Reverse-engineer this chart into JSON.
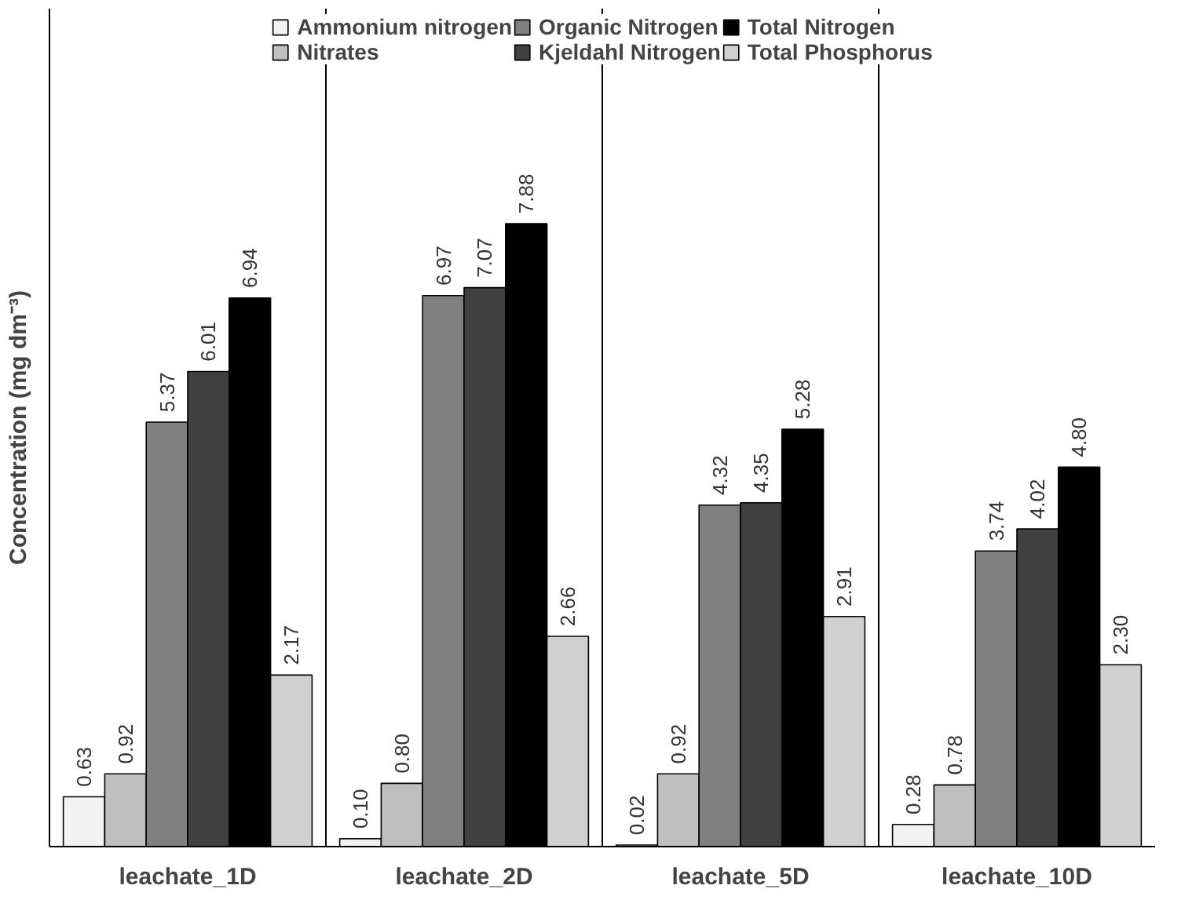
{
  "chart_data": {
    "type": "bar",
    "ylabel": "Concentration (mg dm⁻³)",
    "categories": [
      "leachate_1D",
      "leachate_2D",
      "leachate_5D",
      "leachate_10D"
    ],
    "series": [
      {
        "name": "Ammonium nitrogen",
        "color": "#f2f2f2",
        "values": [
          0.63,
          0.1,
          0.02,
          0.28
        ],
        "value_labels": [
          "0.63",
          "0.10",
          "0.02",
          "0.28"
        ]
      },
      {
        "name": "Nitrates",
        "color": "#bfbfbf",
        "values": [
          0.92,
          0.8,
          0.92,
          0.78
        ],
        "value_labels": [
          "0.92",
          "0.80",
          "0.92",
          "0.78"
        ]
      },
      {
        "name": "Organic Nitrogen",
        "color": "#808080",
        "values": [
          5.37,
          6.97,
          4.32,
          3.74
        ],
        "value_labels": [
          "5.37",
          "6.97",
          "4.32",
          "3.74"
        ]
      },
      {
        "name": "Kjeldahl Nitrogen",
        "color": "#404040",
        "values": [
          6.01,
          7.07,
          4.35,
          4.02
        ],
        "value_labels": [
          "6.01",
          "7.07",
          "4.35",
          "4.02"
        ]
      },
      {
        "name": "Total Nitrogen",
        "color": "#000000",
        "values": [
          6.94,
          7.88,
          5.28,
          4.8
        ],
        "value_labels": [
          "6.94",
          "7.88",
          "5.28",
          "4.80"
        ]
      },
      {
        "name": "Total Phosphorus",
        "color": "#d0d0d0",
        "values": [
          2.17,
          2.66,
          2.91,
          2.3
        ],
        "value_labels": [
          "2.17",
          "2.66",
          "2.91",
          "2.30"
        ]
      }
    ],
    "ylim": [
      0,
      10.6
    ],
    "tick_labels": "x",
    "grid": "x",
    "legend": "top"
  }
}
